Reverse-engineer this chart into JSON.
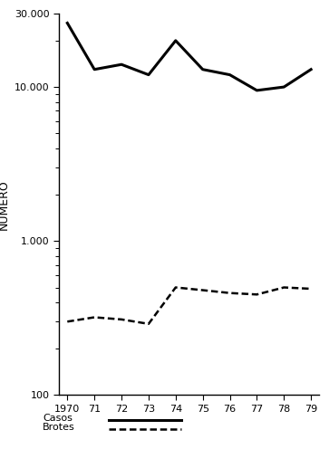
{
  "years": [
    1970,
    1971,
    1972,
    1973,
    1974,
    1975,
    1976,
    1977,
    1978,
    1979
  ],
  "casos": [
    26000,
    13000,
    14000,
    12000,
    20000,
    13000,
    12000,
    9500,
    10000,
    13000
  ],
  "brotes": [
    300,
    320,
    310,
    290,
    500,
    480,
    460,
    450,
    500,
    490
  ],
  "ylim": [
    100,
    30000
  ],
  "xlim": [
    1970,
    1979
  ],
  "ylabel": "NUMERO",
  "yticks": [
    100,
    1000,
    10000,
    30000
  ],
  "ytick_labels": [
    "100",
    "1.000",
    "10.000",
    "30.000"
  ],
  "xtick_labels": [
    "1970",
    "71",
    "72",
    "73",
    "74",
    "75",
    "76",
    "77",
    "78",
    "79"
  ],
  "legend_casos": "Casos",
  "legend_brotes": "Brotes",
  "line_color": "#000000",
  "background_color": "#ffffff"
}
